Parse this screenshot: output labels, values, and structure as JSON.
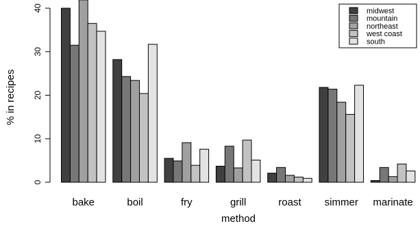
{
  "chart_data": {
    "type": "bar",
    "title": "",
    "xlabel": "method",
    "ylabel": "% in recipes",
    "ylim": [
      0,
      40
    ],
    "yticks": [
      0,
      10,
      20,
      30,
      40
    ],
    "categories": [
      "bake",
      "boil",
      "fry",
      "grill",
      "roast",
      "simmer",
      "marinate"
    ],
    "series": [
      {
        "name": "midwest",
        "color": "#404040",
        "values": [
          40.0,
          28.2,
          5.5,
          3.7,
          2.1,
          21.8,
          0.4
        ]
      },
      {
        "name": "mountain",
        "color": "#777777",
        "values": [
          31.5,
          24.3,
          4.9,
          8.3,
          3.4,
          21.4,
          3.4
        ]
      },
      {
        "name": "northeast",
        "color": "#a0a0a0",
        "values": [
          41.9,
          23.4,
          9.1,
          3.3,
          1.6,
          18.4,
          1.3
        ]
      },
      {
        "name": "west coast",
        "color": "#c2c2c2",
        "values": [
          36.5,
          20.4,
          3.9,
          9.7,
          1.2,
          15.6,
          4.2
        ]
      },
      {
        "name": "south",
        "color": "#e3e3e3",
        "values": [
          34.7,
          31.7,
          7.6,
          5.1,
          0.9,
          22.3,
          2.6
        ]
      }
    ],
    "legend_position": "top-right",
    "grid": false
  }
}
